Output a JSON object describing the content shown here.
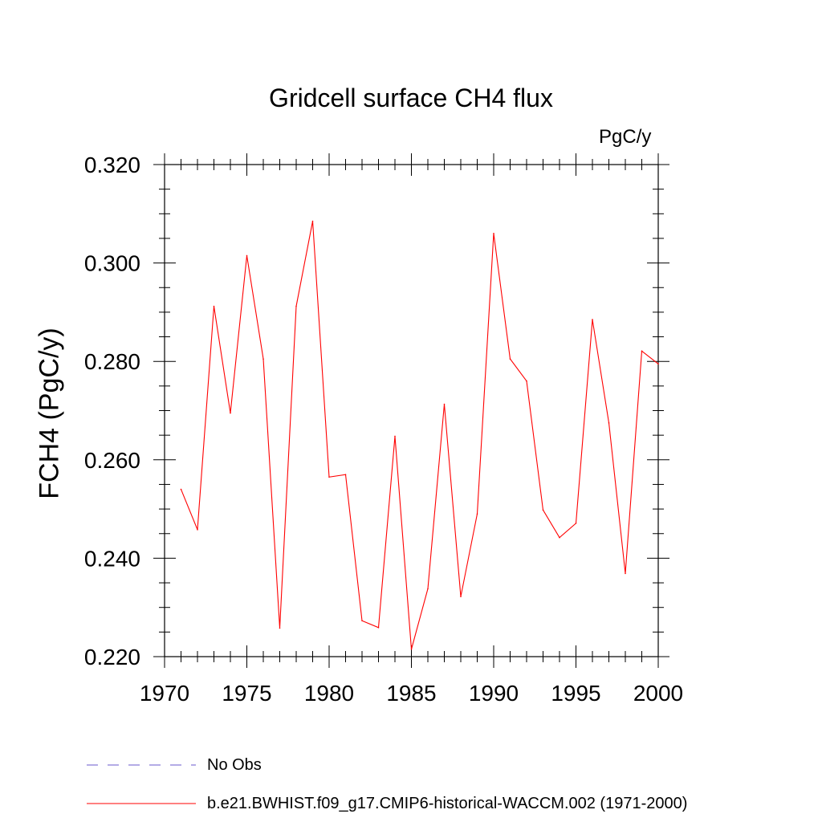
{
  "chart_data": {
    "type": "line",
    "title": "Gridcell surface CH4 flux",
    "units_label": "PgC/y",
    "ylabel": "FCH4  (PgC/y)",
    "xlabel": "",
    "xlim": [
      1970,
      2000
    ],
    "ylim": [
      0.22,
      0.32
    ],
    "x_ticks": [
      1970,
      1975,
      1980,
      1985,
      1990,
      1995,
      2000
    ],
    "x_tick_labels": [
      "1970",
      "1975",
      "1980",
      "1985",
      "1990",
      "1995",
      "2000"
    ],
    "y_ticks": [
      0.22,
      0.24,
      0.26,
      0.28,
      0.3,
      0.32
    ],
    "y_tick_labels": [
      "0.220",
      "0.240",
      "0.260",
      "0.280",
      "0.300",
      "0.320"
    ],
    "grid": false,
    "legend_position": "bottom",
    "series": [
      {
        "name": "No Obs",
        "style": "dashed",
        "color": "#6a5acd",
        "x": [],
        "values": []
      },
      {
        "name": "b.e21.BWHIST.f09_g17.CMIP6-historical-WACCM.002 (1971-2000)",
        "style": "solid",
        "color": "#ff0000",
        "x": [
          1971,
          1972,
          1973,
          1974,
          1975,
          1976,
          1977,
          1978,
          1979,
          1980,
          1981,
          1982,
          1983,
          1984,
          1985,
          1986,
          1987,
          1988,
          1989,
          1990,
          1991,
          1992,
          1993,
          1994,
          1995,
          1996,
          1997,
          1998,
          1999,
          2000
        ],
        "values": [
          0.254,
          0.2458,
          0.2912,
          0.2695,
          0.3015,
          0.2805,
          0.2258,
          0.2912,
          0.3085,
          0.2565,
          0.257,
          0.2273,
          0.2259,
          0.2648,
          0.2215,
          0.2338,
          0.2713,
          0.2322,
          0.249,
          0.306,
          0.2805,
          0.276,
          0.2498,
          0.2442,
          0.2471,
          0.2885,
          0.2675,
          0.2369,
          0.2821,
          0.2795
        ]
      }
    ]
  }
}
